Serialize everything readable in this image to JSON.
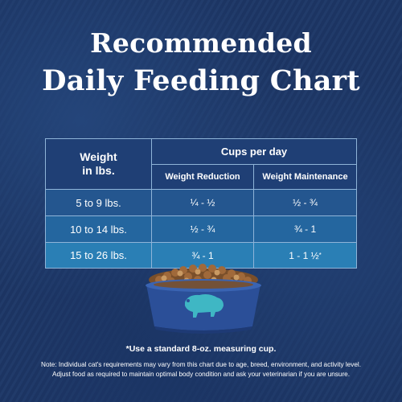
{
  "title_line1": "Recommended",
  "title_line2": "Daily Feeding Chart",
  "table": {
    "weight_header_line1": "Weight",
    "weight_header_line2": "in lbs.",
    "cups_header": "Cups per day",
    "reduction_header": "Weight Reduction",
    "maintenance_header": "Weight Maintenance",
    "rows": [
      {
        "weight": "5 to 9 lbs.",
        "reduction": "¼ - ½",
        "maintenance": "½ - ¾"
      },
      {
        "weight": "10 to 14 lbs.",
        "reduction": "½ - ¾",
        "maintenance": "¾ - 1"
      },
      {
        "weight": "15 to 26 lbs.",
        "reduction": "¾ - 1",
        "maintenance": "1 - 1 ½"
      }
    ],
    "asterisk": "*"
  },
  "footnote": "*Use a standard 8-oz. measuring cup.",
  "note_line1": "Note: Individual cat's requirements may vary from this chart due to age, breed, environment, and activity level.",
  "note_line2": "Adjust food as required to maintain optimal body condition and ask your veterinarian if you are unsure.",
  "colors": {
    "background": "#1d3767",
    "header_cell": "#1f3f75",
    "row1": "#24568f",
    "row2": "#24669f",
    "row3": "#2a7fb5",
    "border": "#8fb4d8",
    "bowl": "#2b4f98",
    "bison_logo": "#3fb7c4"
  },
  "icons": [
    "food-bowl-icon",
    "bison-logo-icon"
  ]
}
